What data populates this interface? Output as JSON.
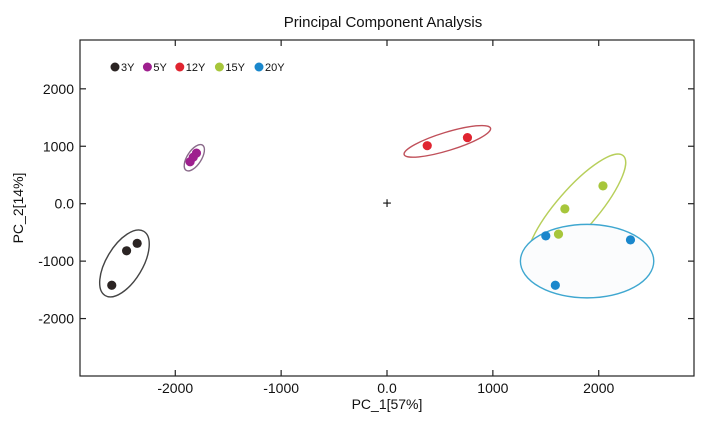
{
  "chart_data": {
    "type": "scatter",
    "title": "Principal  Component Analysis",
    "xlabel": "PC_1[57%]",
    "ylabel": "PC_2[14%]",
    "xlim": [
      -2900,
      2900
    ],
    "ylim": [
      -3000,
      2850
    ],
    "x_ticks": [
      {
        "value": -2000,
        "label": "-2000"
      },
      {
        "value": -1000,
        "label": "-1000"
      },
      {
        "value": 0,
        "label": "0.0"
      },
      {
        "value": 1000,
        "label": "1000"
      },
      {
        "value": 2000,
        "label": "2000"
      }
    ],
    "y_ticks": [
      {
        "value": 2000,
        "label": "2000"
      },
      {
        "value": 1000,
        "label": "1000"
      },
      {
        "value": 0,
        "label": "0.0"
      },
      {
        "value": -1000,
        "label": "-1000"
      },
      {
        "value": -2000,
        "label": "-2000"
      }
    ],
    "grid": false,
    "legend_position": "top-left",
    "origin_marker": "+",
    "series": [
      {
        "name": "3Y",
        "color": "#2b2423",
        "points": [
          [
            -2600,
            -1420
          ],
          [
            -2460,
            -820
          ],
          [
            -2360,
            -690
          ]
        ],
        "ellipse": {
          "cx": -2480,
          "cy": -1040,
          "rx": 510,
          "ry": 190,
          "angle_deg": -59,
          "stroke": "#444444"
        }
      },
      {
        "name": "5Y",
        "color": "#9e1f8e",
        "points": [
          [
            -1860,
            730
          ],
          [
            -1830,
            810
          ],
          [
            -1800,
            880
          ]
        ],
        "ellipse": {
          "cx": -1820,
          "cy": 800,
          "rx": 200,
          "ry": 75,
          "angle_deg": -57,
          "stroke": "#8a6a8a"
        }
      },
      {
        "name": "12Y",
        "color": "#e02430",
        "points": [
          [
            380,
            1010
          ],
          [
            760,
            1150
          ]
        ],
        "ellipse": {
          "cx": 570,
          "cy": 1085,
          "rx": 440,
          "ry": 145,
          "angle_deg": -17,
          "stroke": "#c0505a"
        }
      },
      {
        "name": "15Y",
        "color": "#a7c63b",
        "points": [
          [
            2040,
            310
          ],
          [
            1680,
            -90
          ],
          [
            1620,
            -530
          ]
        ],
        "ellipse": {
          "cx": 1790,
          "cy": -100,
          "rx": 870,
          "ry": 230,
          "angle_deg": -49,
          "stroke": "#b7cf5a"
        }
      },
      {
        "name": "20Y",
        "color": "#1a87cc",
        "points": [
          [
            1500,
            -560
          ],
          [
            2300,
            -630
          ],
          [
            1590,
            -1420
          ]
        ],
        "ellipse": {
          "cx": 1890,
          "cy": -1000,
          "rx": 630,
          "ry": 640,
          "angle_deg": 0,
          "stroke": "#3fa7d0"
        }
      }
    ]
  }
}
